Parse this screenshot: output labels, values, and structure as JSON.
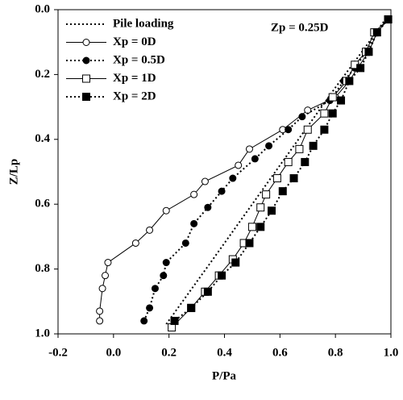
{
  "chart_data": {
    "type": "line",
    "xlabel": "P/Pa",
    "ylabel": "Z/Lp",
    "annotation": "Zp = 0.25D",
    "xlim": [
      -0.2,
      1.0
    ],
    "ylim": [
      1.0,
      0.0
    ],
    "y_inverted": true,
    "xticks": [
      -0.2,
      {
        "value": 0.0,
        "label": "0.0"
      },
      0.2,
      0.4,
      0.6,
      0.8,
      {
        "value": 1.0,
        "label": "1.0"
      }
    ],
    "yticks": [
      {
        "value": 0.0,
        "label": "0.0"
      },
      0.2,
      0.4,
      0.6,
      0.8,
      {
        "value": 1.0,
        "label": "1.0"
      }
    ],
    "legend": "upper left",
    "series": [
      {
        "name": "Pile loading",
        "color": "#000000",
        "line_style": "dotted",
        "marker": "none",
        "x": [
          0.19,
          0.35,
          0.5,
          0.65,
          0.8,
          0.9,
          0.98
        ],
        "values": [
          0.97,
          0.78,
          0.6,
          0.42,
          0.24,
          0.125,
          0.03
        ]
      },
      {
        "name": "Xp = 0D",
        "color": "#000000",
        "line_style": "solid",
        "marker": "circle-open",
        "x": [
          0.99,
          0.95,
          0.92,
          0.88,
          0.85,
          0.8,
          0.7,
          0.61,
          0.49,
          0.45,
          0.33,
          0.29,
          0.19,
          0.13,
          0.08,
          -0.02,
          -0.03,
          -0.04,
          -0.05,
          -0.05
        ],
        "values": [
          0.03,
          0.07,
          0.13,
          0.18,
          0.22,
          0.27,
          0.31,
          0.37,
          0.43,
          0.48,
          0.53,
          0.57,
          0.62,
          0.68,
          0.72,
          0.78,
          0.82,
          0.86,
          0.93,
          0.96
        ]
      },
      {
        "name": "Xp = 0.5D",
        "color": "#000000",
        "line_style": "dotted",
        "marker": "circle-filled",
        "x": [
          0.99,
          0.95,
          0.91,
          0.87,
          0.83,
          0.78,
          0.68,
          0.63,
          0.56,
          0.51,
          0.43,
          0.39,
          0.34,
          0.29,
          0.26,
          0.19,
          0.18,
          0.15,
          0.13,
          0.11
        ],
        "values": [
          0.03,
          0.07,
          0.13,
          0.18,
          0.22,
          0.28,
          0.33,
          0.37,
          0.42,
          0.46,
          0.52,
          0.56,
          0.61,
          0.66,
          0.72,
          0.78,
          0.82,
          0.86,
          0.92,
          0.96
        ]
      },
      {
        "name": "Xp = 1D",
        "color": "#000000",
        "line_style": "solid",
        "marker": "square-open",
        "x": [
          0.99,
          0.94,
          0.91,
          0.87,
          0.84,
          0.79,
          0.76,
          0.7,
          0.67,
          0.63,
          0.59,
          0.55,
          0.53,
          0.5,
          0.47,
          0.43,
          0.38,
          0.33,
          0.28,
          0.21
        ],
        "values": [
          0.03,
          0.07,
          0.13,
          0.17,
          0.22,
          0.27,
          0.32,
          0.37,
          0.43,
          0.47,
          0.52,
          0.57,
          0.61,
          0.67,
          0.72,
          0.77,
          0.82,
          0.87,
          0.92,
          0.98
        ]
      },
      {
        "name": "Xp = 2D",
        "color": "#000000",
        "line_style": "dotted",
        "marker": "square-filled",
        "x": [
          0.99,
          0.95,
          0.92,
          0.89,
          0.85,
          0.82,
          0.79,
          0.76,
          0.72,
          0.69,
          0.65,
          0.61,
          0.57,
          0.53,
          0.49,
          0.44,
          0.39,
          0.34,
          0.28,
          0.22
        ],
        "values": [
          0.03,
          0.07,
          0.13,
          0.18,
          0.22,
          0.28,
          0.32,
          0.37,
          0.42,
          0.47,
          0.52,
          0.56,
          0.62,
          0.67,
          0.72,
          0.78,
          0.82,
          0.87,
          0.92,
          0.96
        ]
      }
    ]
  }
}
